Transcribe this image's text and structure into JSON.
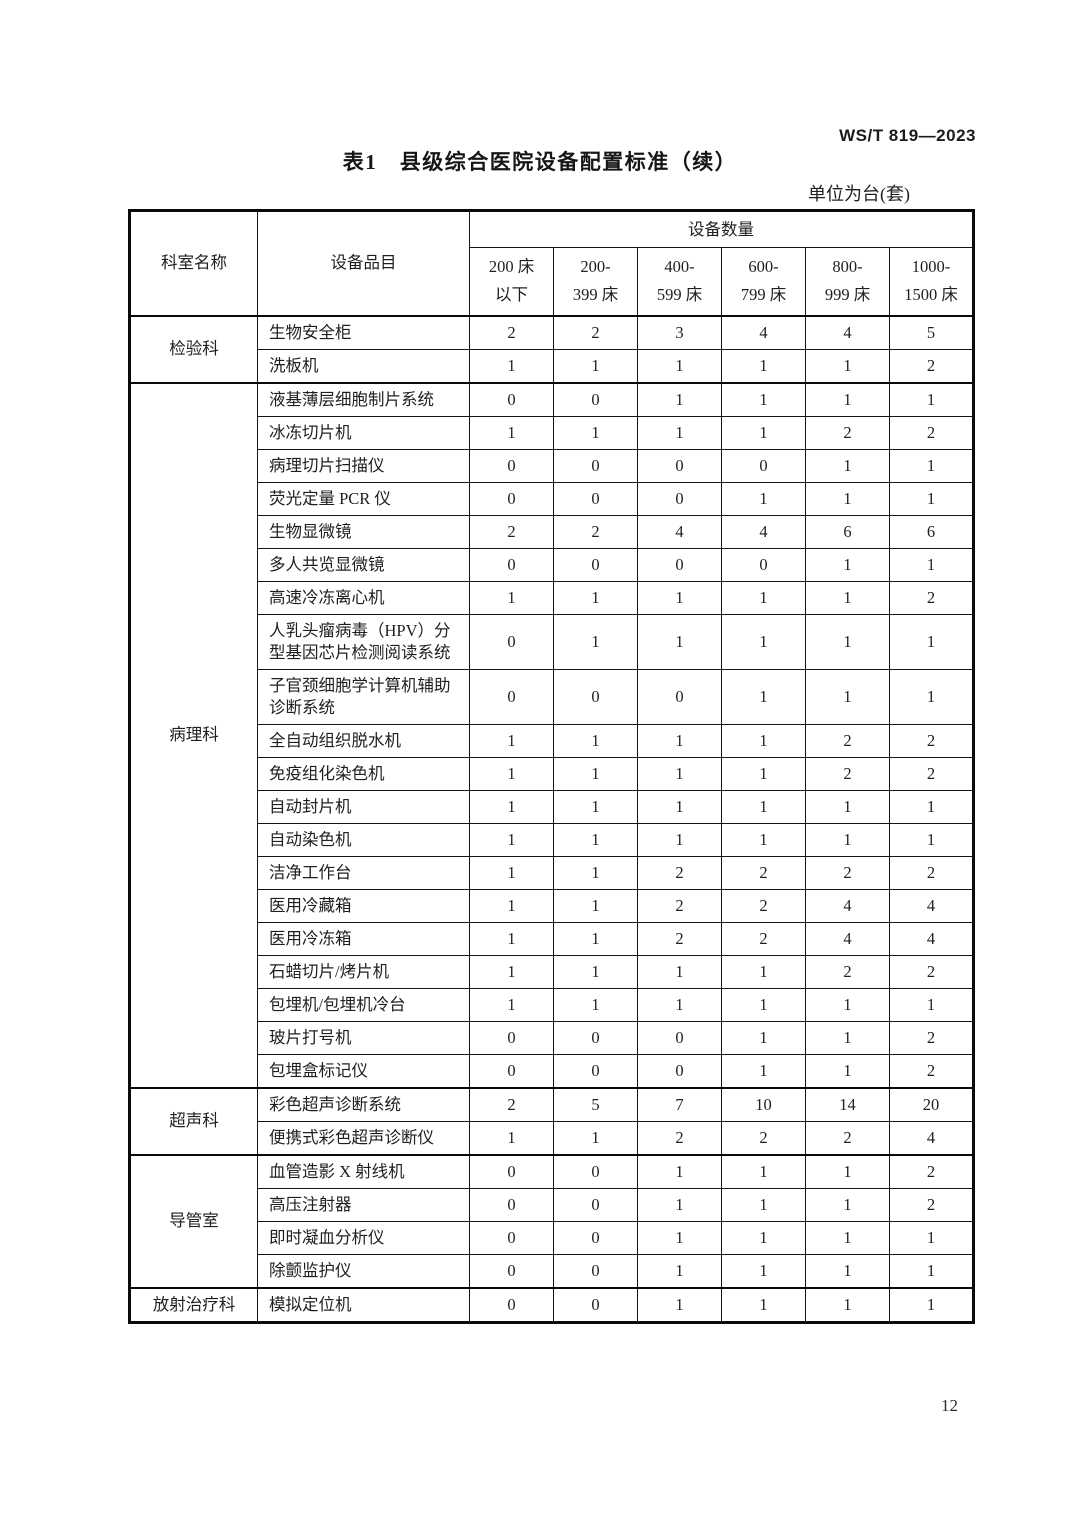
{
  "page": {
    "doc_code": "WS/T 819—2023",
    "title": "表1　县级综合医院设备配置标准（续）",
    "unit_note": "单位为台(套)",
    "page_number": "12"
  },
  "table": {
    "col_headers": {
      "department": "科室名称",
      "equipment": "设备品目",
      "quantity": "设备数量",
      "bed_ranges": [
        "200 床\n以下",
        "200-\n399 床",
        "400-\n599 床",
        "600-\n799 床",
        "800-\n999 床",
        "1000-\n1500 床"
      ]
    },
    "groups": [
      {
        "department": "检验科",
        "rows": [
          {
            "name": "生物安全柜",
            "values": [
              "2",
              "2",
              "3",
              "4",
              "4",
              "5"
            ]
          },
          {
            "name": "洗板机",
            "values": [
              "1",
              "1",
              "1",
              "1",
              "1",
              "2"
            ]
          }
        ]
      },
      {
        "department": "病理科",
        "rows": [
          {
            "name": "液基薄层细胞制片系统",
            "values": [
              "0",
              "0",
              "1",
              "1",
              "1",
              "1"
            ]
          },
          {
            "name": "冰冻切片机",
            "values": [
              "1",
              "1",
              "1",
              "1",
              "2",
              "2"
            ]
          },
          {
            "name": "病理切片扫描仪",
            "values": [
              "0",
              "0",
              "0",
              "0",
              "1",
              "1"
            ]
          },
          {
            "name": "荧光定量 PCR 仪",
            "values": [
              "0",
              "0",
              "0",
              "1",
              "1",
              "1"
            ]
          },
          {
            "name": "生物显微镜",
            "values": [
              "2",
              "2",
              "4",
              "4",
              "6",
              "6"
            ]
          },
          {
            "name": "多人共览显微镜",
            "values": [
              "0",
              "0",
              "0",
              "0",
              "1",
              "1"
            ]
          },
          {
            "name": "高速冷冻离心机",
            "values": [
              "1",
              "1",
              "1",
              "1",
              "1",
              "2"
            ]
          },
          {
            "name": "人乳头瘤病毒（HPV）分型基因芯片检测阅读系统",
            "values": [
              "0",
              "1",
              "1",
              "1",
              "1",
              "1"
            ]
          },
          {
            "name": "子官颈细胞学计算机辅助诊断系统",
            "values": [
              "0",
              "0",
              "0",
              "1",
              "1",
              "1"
            ]
          },
          {
            "name": "全自动组织脱水机",
            "values": [
              "1",
              "1",
              "1",
              "1",
              "2",
              "2"
            ]
          },
          {
            "name": "免疫组化染色机",
            "values": [
              "1",
              "1",
              "1",
              "1",
              "2",
              "2"
            ]
          },
          {
            "name": "自动封片机",
            "values": [
              "1",
              "1",
              "1",
              "1",
              "1",
              "1"
            ]
          },
          {
            "name": "自动染色机",
            "values": [
              "1",
              "1",
              "1",
              "1",
              "1",
              "1"
            ]
          },
          {
            "name": "洁净工作台",
            "values": [
              "1",
              "1",
              "2",
              "2",
              "2",
              "2"
            ]
          },
          {
            "name": "医用冷藏箱",
            "values": [
              "1",
              "1",
              "2",
              "2",
              "4",
              "4"
            ]
          },
          {
            "name": "医用冷冻箱",
            "values": [
              "1",
              "1",
              "2",
              "2",
              "4",
              "4"
            ]
          },
          {
            "name": "石蜡切片/烤片机",
            "values": [
              "1",
              "1",
              "1",
              "1",
              "2",
              "2"
            ]
          },
          {
            "name": "包埋机/包埋机冷台",
            "values": [
              "1",
              "1",
              "1",
              "1",
              "1",
              "1"
            ]
          },
          {
            "name": "玻片打号机",
            "values": [
              "0",
              "0",
              "0",
              "1",
              "1",
              "2"
            ]
          },
          {
            "name": "包埋盒标记仪",
            "values": [
              "0",
              "0",
              "0",
              "1",
              "1",
              "2"
            ]
          }
        ]
      },
      {
        "department": "超声科",
        "rows": [
          {
            "name": "彩色超声诊断系统",
            "values": [
              "2",
              "5",
              "7",
              "10",
              "14",
              "20"
            ]
          },
          {
            "name": "便携式彩色超声诊断仪",
            "values": [
              "1",
              "1",
              "2",
              "2",
              "2",
              "4"
            ]
          }
        ]
      },
      {
        "department": "导管室",
        "rows": [
          {
            "name": "血管造影 X 射线机",
            "values": [
              "0",
              "0",
              "1",
              "1",
              "1",
              "2"
            ]
          },
          {
            "name": "高压注射器",
            "values": [
              "0",
              "0",
              "1",
              "1",
              "1",
              "2"
            ]
          },
          {
            "name": "即时凝血分析仪",
            "values": [
              "0",
              "0",
              "1",
              "1",
              "1",
              "1"
            ]
          },
          {
            "name": "除颤监护仪",
            "values": [
              "0",
              "0",
              "1",
              "1",
              "1",
              "1"
            ]
          }
        ]
      },
      {
        "department": "放射治疗科",
        "rows": [
          {
            "name": "模拟定位机",
            "values": [
              "0",
              "0",
              "1",
              "1",
              "1",
              "1"
            ]
          }
        ]
      }
    ]
  }
}
